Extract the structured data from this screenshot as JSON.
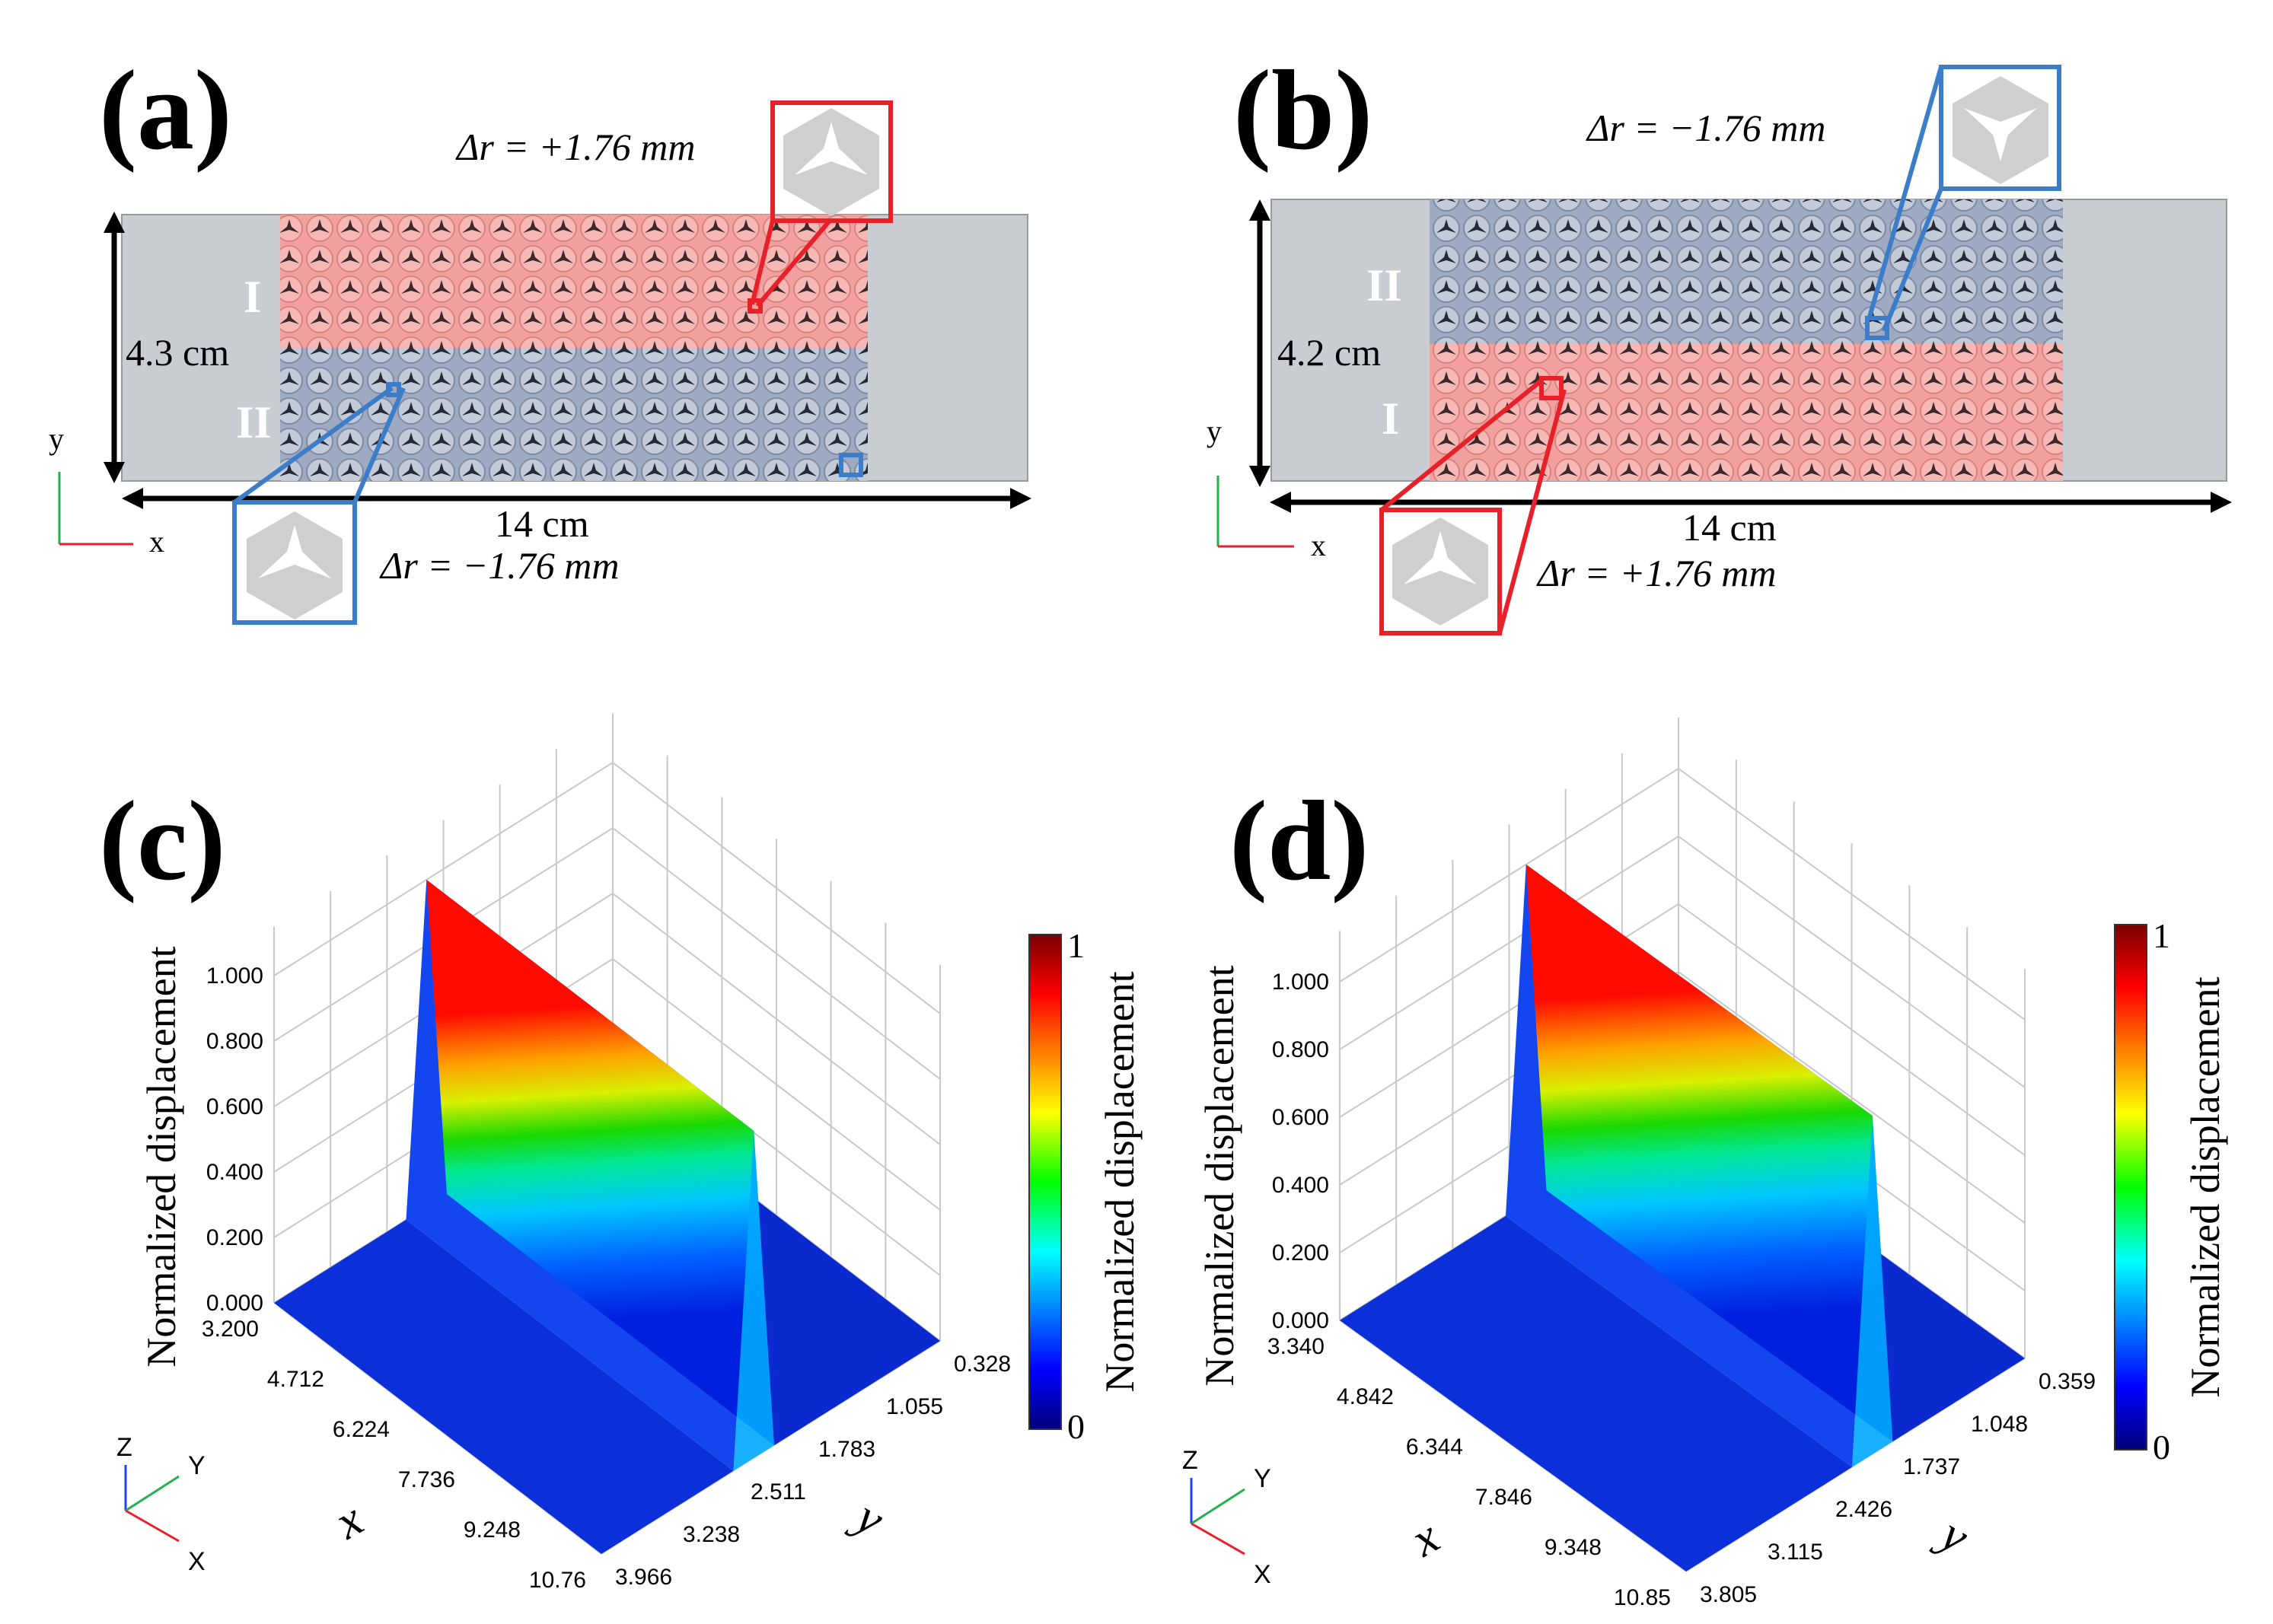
{
  "figure": {
    "colors": {
      "region_I": "#f08c8c",
      "region_II": "#9aa8c4",
      "red_box": "#e8202a",
      "blue_box": "#3b7dc9",
      "plate": "#c9cdd2"
    },
    "panel_a": {
      "label": "(a)",
      "region_top": "I",
      "region_bottom": "II",
      "height_label": "4.3 cm",
      "width_label": "14 cm",
      "top_inset_label": "Δr = +1.76 mm",
      "bottom_inset_label": "Δr = −1.76 mm",
      "axis_x": "x",
      "axis_y": "y"
    },
    "panel_b": {
      "label": "(b)",
      "region_top": "II",
      "region_bottom": "I",
      "height_label": "4.2 cm",
      "width_label": "14 cm",
      "top_inset_label": "Δr = −1.76 mm",
      "bottom_inset_label": "Δr = +1.76 mm",
      "axis_x": "x",
      "axis_y": "y"
    },
    "colorbar": {
      "max_label": "1",
      "min_label": "0",
      "title": "Normalized displacement"
    },
    "triad": {
      "z": "Z",
      "y": "Y",
      "x": "X"
    }
  },
  "chart_data": [
    {
      "type": "surface3d",
      "panel": "(c)",
      "zlabel": "Normalized displacement",
      "xlabel": "x",
      "ylabel": "y",
      "z_ticks": [
        "0.000",
        "0.200",
        "0.400",
        "0.600",
        "0.800",
        "1.000"
      ],
      "x_ticks": [
        "3.200",
        "4.712",
        "6.224",
        "7.736",
        "9.248",
        "10.76"
      ],
      "y_ticks": [
        "0.328",
        "1.055",
        "1.783",
        "2.511",
        "3.238",
        "3.966"
      ],
      "zlim": [
        0,
        1
      ],
      "ridge_y_fraction": 0.55,
      "ridge_value": 1.0
    },
    {
      "type": "surface3d",
      "panel": "(d)",
      "zlabel": "Normalized displacement",
      "xlabel": "x",
      "ylabel": "y",
      "z_ticks": [
        "0.000",
        "0.200",
        "0.400",
        "0.600",
        "0.800",
        "1.000"
      ],
      "x_ticks": [
        "3.340",
        "4.842",
        "6.344",
        "7.846",
        "9.348",
        "10.85"
      ],
      "y_ticks": [
        "0.359",
        "1.048",
        "1.737",
        "2.426",
        "3.115",
        "3.805"
      ],
      "zlim": [
        0,
        1
      ],
      "ridge_y_fraction": 0.45,
      "ridge_value": 1.0
    }
  ]
}
